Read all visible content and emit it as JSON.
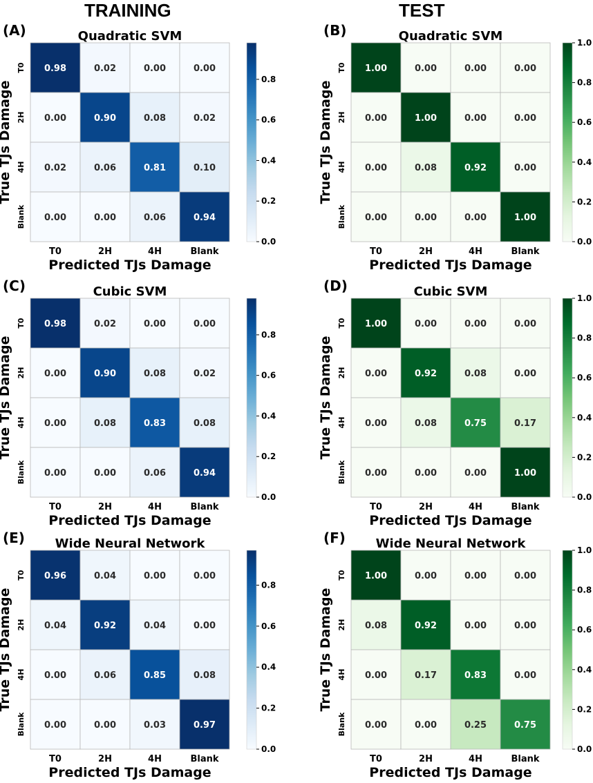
{
  "column_headers": {
    "training": "TRAINING",
    "test": "TEST"
  },
  "colors": {
    "blues": [
      "#f7fbff",
      "#deebf7",
      "#c6dbef",
      "#9ecae1",
      "#6baed6",
      "#4292c6",
      "#2171b5",
      "#08519c",
      "#08306b"
    ],
    "greens": [
      "#f7fcf5",
      "#e5f5e0",
      "#c7e9c0",
      "#a1d99b",
      "#74c476",
      "#41ab5d",
      "#238b45",
      "#006d2c",
      "#00441b"
    ]
  },
  "chart_data": [
    {
      "type": "heatmap",
      "panel_label": "(A)",
      "title": "Quadratic SVM",
      "xlabel": "Predicted TJs Damage",
      "ylabel": "True TJs Damage",
      "x_categories": [
        "T0",
        "2H",
        "4H",
        "Blank"
      ],
      "y_categories": [
        "T0",
        "2H",
        "4H",
        "Blank"
      ],
      "values": [
        [
          "0.98",
          "0.02",
          "0.00",
          "0.00"
        ],
        [
          "0.00",
          "0.90",
          "0.08",
          "0.02"
        ],
        [
          "0.02",
          "0.06",
          "0.81",
          "0.10"
        ],
        [
          "0.00",
          "0.00",
          "0.06",
          "0.94"
        ]
      ],
      "colormap": "blues",
      "vmin": 0,
      "vmax": 0.98,
      "colorbar_ticks": [
        "0.0",
        "0.2",
        "0.4",
        "0.6",
        "0.8"
      ]
    },
    {
      "type": "heatmap",
      "panel_label": "(B)",
      "title": "Quadratic SVM",
      "xlabel": "Predicted TJs Damage",
      "ylabel": "True TJs Damage",
      "x_categories": [
        "T0",
        "2H",
        "4H",
        "Blank"
      ],
      "y_categories": [
        "T0",
        "2H",
        "4H",
        "Blank"
      ],
      "values": [
        [
          "1.00",
          "0.00",
          "0.00",
          "0.00"
        ],
        [
          "0.00",
          "1.00",
          "0.00",
          "0.00"
        ],
        [
          "0.00",
          "0.08",
          "0.92",
          "0.00"
        ],
        [
          "0.00",
          "0.00",
          "0.00",
          "1.00"
        ]
      ],
      "colormap": "greens",
      "vmin": 0,
      "vmax": 1.0,
      "colorbar_ticks": [
        "0.0",
        "0.2",
        "0.4",
        "0.6",
        "0.8",
        "1.0"
      ]
    },
    {
      "type": "heatmap",
      "panel_label": "(C)",
      "title": "Cubic SVM",
      "xlabel": "Predicted TJs Damage",
      "ylabel": "True TJs Damage",
      "x_categories": [
        "T0",
        "2H",
        "4H",
        "Blank"
      ],
      "y_categories": [
        "T0",
        "2H",
        "4H",
        "Blank"
      ],
      "values": [
        [
          "0.98",
          "0.02",
          "0.00",
          "0.00"
        ],
        [
          "0.00",
          "0.90",
          "0.08",
          "0.02"
        ],
        [
          "0.00",
          "0.08",
          "0.83",
          "0.08"
        ],
        [
          "0.00",
          "0.00",
          "0.06",
          "0.94"
        ]
      ],
      "colormap": "blues",
      "vmin": 0,
      "vmax": 0.98,
      "colorbar_ticks": [
        "0.0",
        "0.2",
        "0.4",
        "0.6",
        "0.8"
      ]
    },
    {
      "type": "heatmap",
      "panel_label": "(D)",
      "title": "Cubic SVM",
      "xlabel": "Predicted TJs Damage",
      "ylabel": "True TJs Damage",
      "x_categories": [
        "T0",
        "2H",
        "4H",
        "Blank"
      ],
      "y_categories": [
        "T0",
        "2H",
        "4H",
        "Blank"
      ],
      "values": [
        [
          "1.00",
          "0.00",
          "0.00",
          "0.00"
        ],
        [
          "0.00",
          "0.92",
          "0.08",
          "0.00"
        ],
        [
          "0.00",
          "0.08",
          "0.75",
          "0.17"
        ],
        [
          "0.00",
          "0.00",
          "0.00",
          "1.00"
        ]
      ],
      "colormap": "greens",
      "vmin": 0,
      "vmax": 1.0,
      "colorbar_ticks": [
        "0.0",
        "0.2",
        "0.4",
        "0.6",
        "0.8",
        "1.0"
      ]
    },
    {
      "type": "heatmap",
      "panel_label": "(E)",
      "title": "Wide Neural Network",
      "xlabel": "Predicted TJs Damage",
      "ylabel": "True TJs Damage",
      "x_categories": [
        "T0",
        "2H",
        "4H",
        "Blank"
      ],
      "y_categories": [
        "T0",
        "2H",
        "4H",
        "Blank"
      ],
      "values": [
        [
          "0.96",
          "0.04",
          "0.00",
          "0.00"
        ],
        [
          "0.04",
          "0.92",
          "0.04",
          "0.00"
        ],
        [
          "0.00",
          "0.06",
          "0.85",
          "0.08"
        ],
        [
          "0.00",
          "0.00",
          "0.03",
          "0.97"
        ]
      ],
      "colormap": "blues",
      "vmin": 0,
      "vmax": 0.97,
      "colorbar_ticks": [
        "0.0",
        "0.2",
        "0.4",
        "0.6",
        "0.8"
      ]
    },
    {
      "type": "heatmap",
      "panel_label": "(F)",
      "title": "Wide Neural Network",
      "xlabel": "Predicted TJs Damage",
      "ylabel": "True TJs Damage",
      "x_categories": [
        "T0",
        "2H",
        "4H",
        "Blank"
      ],
      "y_categories": [
        "T0",
        "2H",
        "4H",
        "Blank"
      ],
      "values": [
        [
          "1.00",
          "0.00",
          "0.00",
          "0.00"
        ],
        [
          "0.08",
          "0.92",
          "0.00",
          "0.00"
        ],
        [
          "0.00",
          "0.17",
          "0.83",
          "0.00"
        ],
        [
          "0.00",
          "0.00",
          "0.25",
          "0.75"
        ]
      ],
      "colormap": "greens",
      "vmin": 0,
      "vmax": 1.0,
      "colorbar_ticks": [
        "0.0",
        "0.2",
        "0.4",
        "0.6",
        "0.8",
        "1.0"
      ]
    }
  ]
}
